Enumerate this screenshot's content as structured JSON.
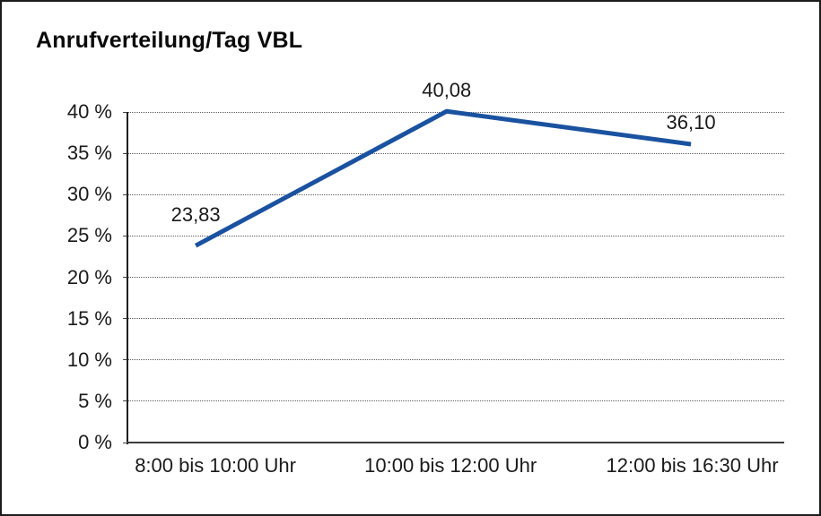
{
  "frame": {
    "background": "#ffffff",
    "border_color": "#1c1c1c"
  },
  "chart_data": {
    "type": "line",
    "title": "Anrufverteilung/Tag VBL",
    "categories": [
      "8:00 bis 10:00 Uhr",
      "10:00 bis 12:00 Uhr",
      "12:00 bis 16:30 Uhr"
    ],
    "values": [
      23.83,
      40.08,
      36.1
    ],
    "value_labels": [
      "23,83",
      "40,08",
      "36,10"
    ],
    "y_ticks": [
      {
        "value": 0,
        "label": "0 %"
      },
      {
        "value": 5,
        "label": "5 %"
      },
      {
        "value": 10,
        "label": "10 %"
      },
      {
        "value": 15,
        "label": "15 %"
      },
      {
        "value": 20,
        "label": "20 %"
      },
      {
        "value": 25,
        "label": "25 %"
      },
      {
        "value": 30,
        "label": "30 %"
      },
      {
        "value": 35,
        "label": "35 %"
      },
      {
        "value": 40,
        "label": "40 %"
      }
    ],
    "ylim": [
      0,
      40
    ],
    "xlabel": "",
    "ylabel": "",
    "grid": "horizontal-dotted",
    "legend": "none",
    "line_color": "#1A52A0"
  }
}
